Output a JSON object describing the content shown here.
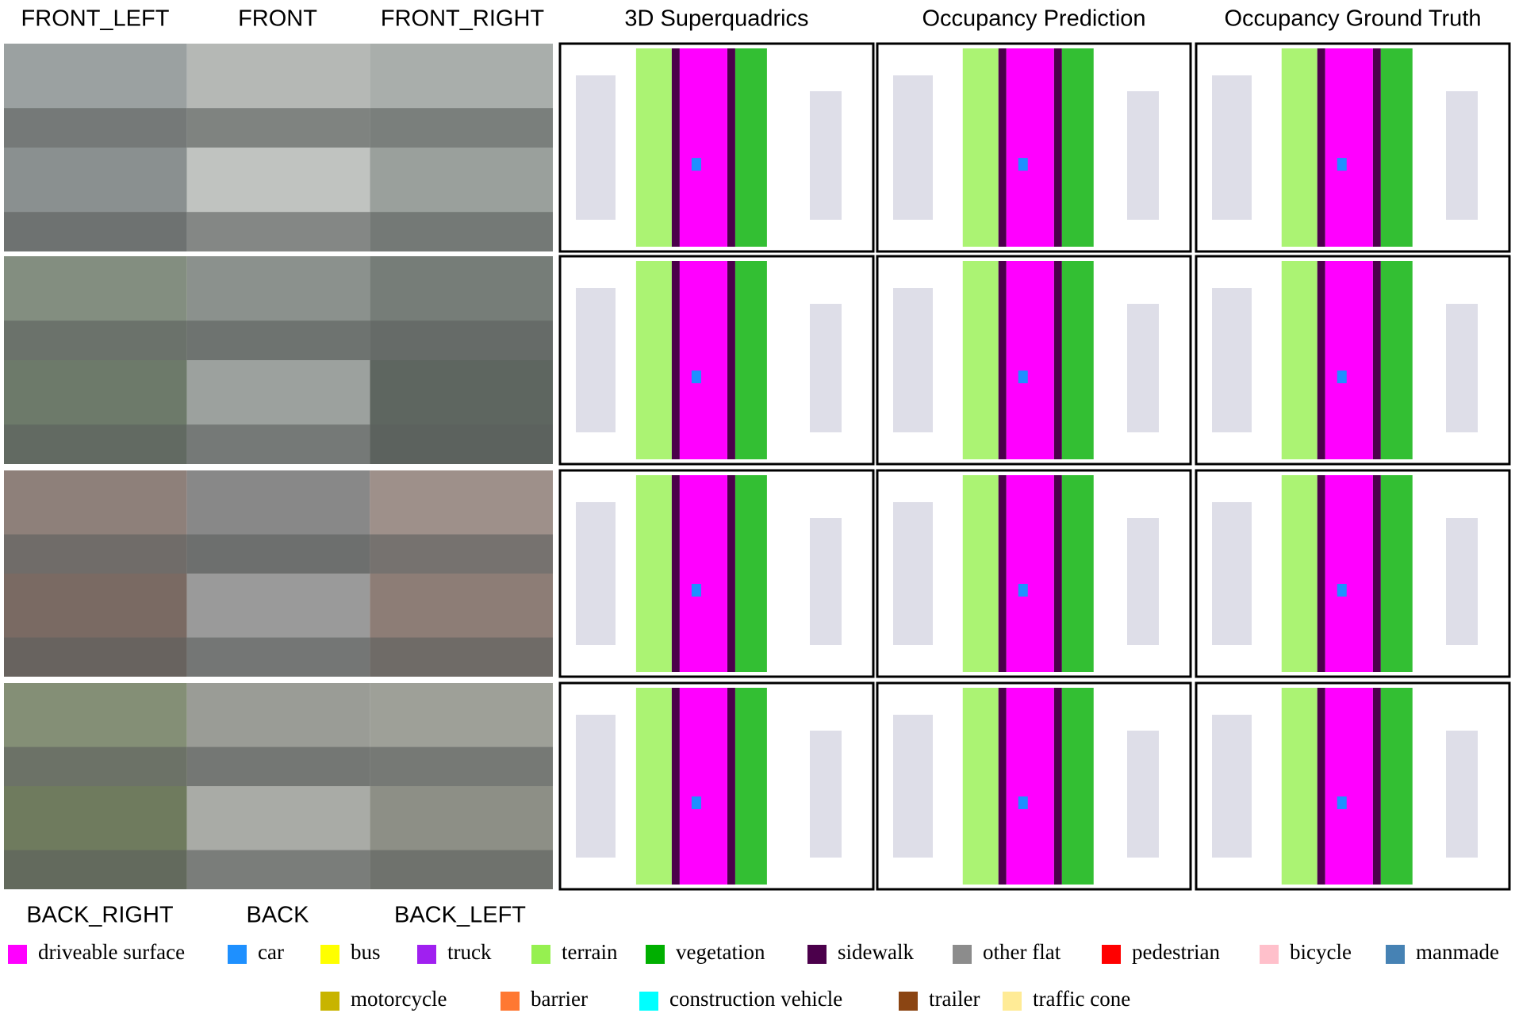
{
  "camera_labels_top": [
    "FRONT_LEFT",
    "FRONT",
    "FRONT_RIGHT"
  ],
  "camera_labels_bottom": [
    "BACK_RIGHT",
    "BACK",
    "BACK_LEFT"
  ],
  "column_titles": [
    "3D Superquadrics",
    "Occupancy Prediction",
    "Occupancy Ground Truth"
  ],
  "legend": [
    {
      "label": "driveable surface",
      "color": "#ff00ff"
    },
    {
      "label": "car",
      "color": "#1e90ff"
    },
    {
      "label": "bus",
      "color": "#ffff00"
    },
    {
      "label": "truck",
      "color": "#a020f0"
    },
    {
      "label": "terrain",
      "color": "#96f050"
    },
    {
      "label": "vegetation",
      "color": "#00af00"
    },
    {
      "label": "sidewalk",
      "color": "#4b004b"
    },
    {
      "label": "other flat",
      "color": "#8c8c8c"
    },
    {
      "label": "pedestrian",
      "color": "#ff0000"
    },
    {
      "label": "bicycle",
      "color": "#ffc0cb"
    },
    {
      "label": "manmade",
      "color": "#4682b4"
    },
    {
      "label": "motorcycle",
      "color": "#c8b400"
    },
    {
      "label": "barrier",
      "color": "#ff7832"
    },
    {
      "label": "construction vehicle",
      "color": "#00ffff"
    },
    {
      "label": "trailer",
      "color": "#8b4513"
    },
    {
      "label": "traffic cone",
      "color": "#ffeb96"
    }
  ]
}
